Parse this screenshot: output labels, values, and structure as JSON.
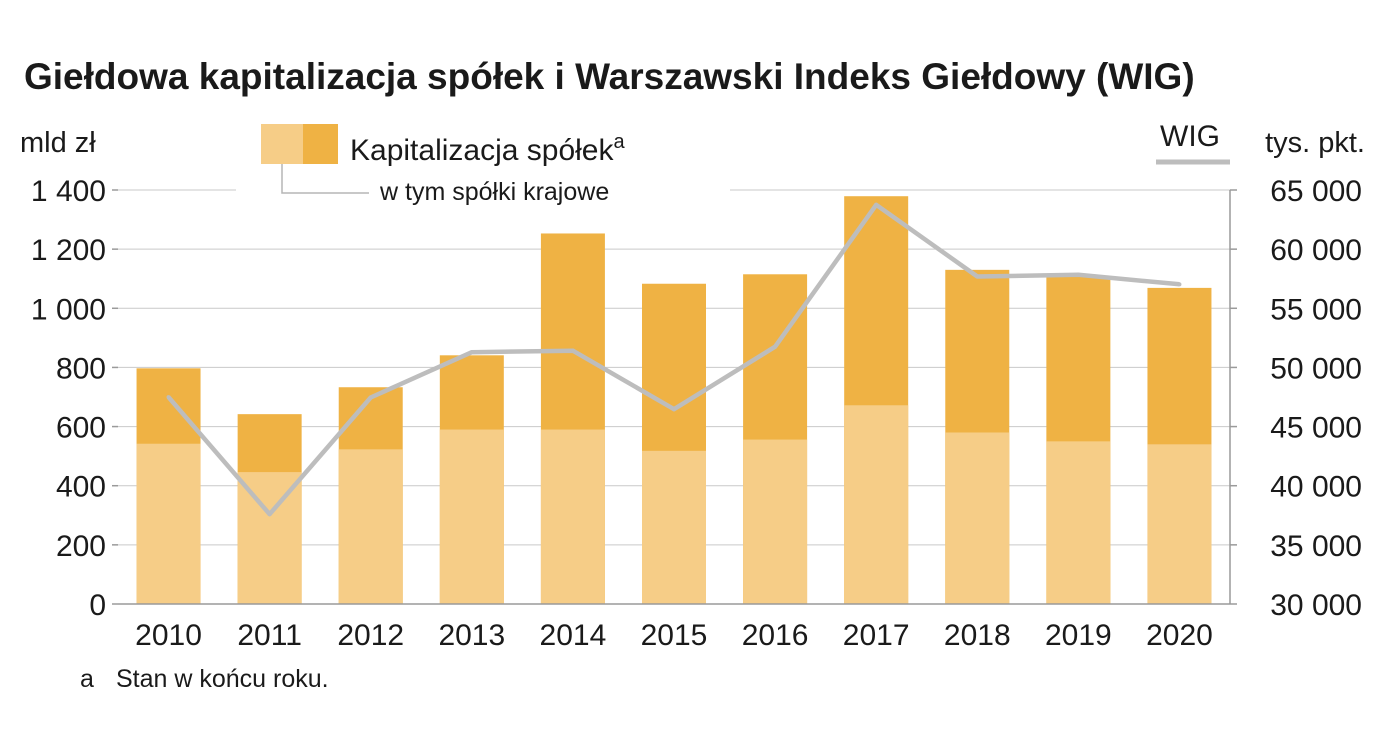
{
  "chart_data": {
    "type": "bar",
    "title": "Giełdowa kapitalizacja spółek i Warszawski Indeks Giełdowy (WIG)",
    "left_unit": "mld zł",
    "right_unit": "tys. pkt.",
    "categories": [
      "2010",
      "2011",
      "2012",
      "2013",
      "2014",
      "2015",
      "2016",
      "2017",
      "2018",
      "2019",
      "2020"
    ],
    "series": [
      {
        "name": "Kapitalizacja spółek",
        "name_sup": "a",
        "kind": "bar",
        "axis": "left",
        "color": "#EFB244",
        "values": [
          797,
          642,
          733,
          841,
          1253,
          1083,
          1115,
          1379,
          1130,
          1109,
          1069
        ]
      },
      {
        "name": "w tym spółki krajowe",
        "kind": "bar-inner",
        "axis": "left",
        "color": "#F6CD87",
        "values": [
          542,
          446,
          523,
          590,
          590,
          518,
          556,
          672,
          580,
          550,
          540
        ]
      },
      {
        "name": "WIG",
        "kind": "line",
        "axis": "right",
        "color": "#BDBDBD",
        "values": [
          47490,
          37595,
          47461,
          51284,
          51417,
          46467,
          51754,
          63746,
          57691,
          57833,
          57026
        ]
      }
    ],
    "left_axis": {
      "ylim": [
        0,
        1400
      ],
      "ticks": [
        "0",
        "200",
        "400",
        "600",
        "800",
        "1 000",
        "1 200",
        "1 400"
      ]
    },
    "right_axis": {
      "ylim": [
        30000,
        65000
      ],
      "ticks": [
        "30 000",
        "35 000",
        "40 000",
        "45 000",
        "50 000",
        "55 000",
        "60 000",
        "65 000"
      ]
    },
    "grid": true,
    "legend_position": "top",
    "footnote_marker": "a",
    "footnote": "Stan w końcu roku."
  }
}
